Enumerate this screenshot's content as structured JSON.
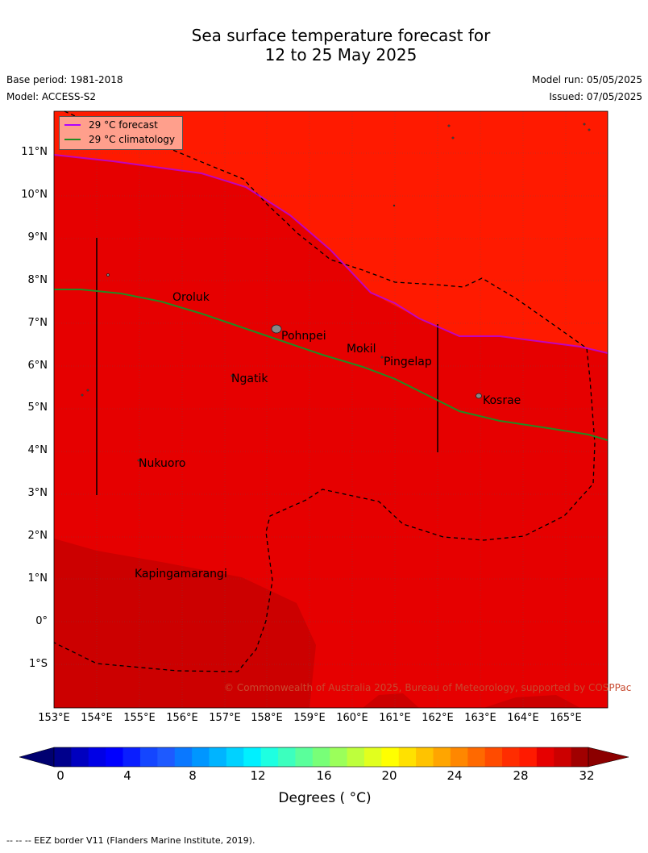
{
  "title": {
    "line1": "Sea surface temperature forecast for",
    "line2": "12 to 25 May 2025"
  },
  "meta": {
    "base_period": "Base period: 1981-2018",
    "model": "Model: ACCESS-S2",
    "model_run": "Model run: 05/05/2025",
    "issued": "Issued: 07/05/2025"
  },
  "map": {
    "background_color": "#ff1a00",
    "warm_region_color": "#e60000",
    "hot_region_color": "#cc0000",
    "lat_labels": [
      "11°N",
      "10°N",
      "9°N",
      "8°N",
      "7°N",
      "6°N",
      "5°N",
      "4°N",
      "3°N",
      "2°N",
      "1°N",
      "0°",
      "1°S"
    ],
    "lon_labels": [
      "153°E",
      "154°E",
      "155°E",
      "156°E",
      "157°E",
      "158°E",
      "159°E",
      "160°E",
      "161°E",
      "162°E",
      "163°E",
      "164°E",
      "165°E"
    ],
    "places": [
      {
        "name": "Oroluk"
      },
      {
        "name": "Pohnpei"
      },
      {
        "name": "Mokil"
      },
      {
        "name": "Pingelap"
      },
      {
        "name": "Ngatik"
      },
      {
        "name": "Kosrae"
      },
      {
        "name": "Nukuoro"
      },
      {
        "name": "Kapingamarangi"
      }
    ],
    "copyright": "© Commonwealth of Australia 2025, Bureau of Meteorology, supported by COSPPac"
  },
  "legend": {
    "forecast_label": "29 °C  forecast",
    "forecast_color": "#b000ff",
    "climatology_label": "29 °C  climatology",
    "climatology_color": "#228b22"
  },
  "colorbar": {
    "ticks": [
      "0",
      "4",
      "8",
      "12",
      "16",
      "20",
      "24",
      "28",
      "32"
    ],
    "label": "Degrees ( °C)",
    "colors": [
      "#00008c",
      "#0000bf",
      "#0000e6",
      "#0000ff",
      "#0a1eff",
      "#1446ff",
      "#1e5aff",
      "#0a78ff",
      "#0096ff",
      "#00b4ff",
      "#00d2ff",
      "#00f0ff",
      "#1effe1",
      "#3cffbe",
      "#5aff9b",
      "#78ff78",
      "#9bff5a",
      "#beff3c",
      "#e1ff1e",
      "#ffff00",
      "#ffe100",
      "#ffc300",
      "#ffa500",
      "#ff8700",
      "#ff6900",
      "#ff4b00",
      "#ff2d00",
      "#ff1a00",
      "#e60000",
      "#cc0000",
      "#a00000"
    ]
  },
  "footnote": "--  --  -- EEZ border V11 (Flanders Marine Institute, 2019)."
}
